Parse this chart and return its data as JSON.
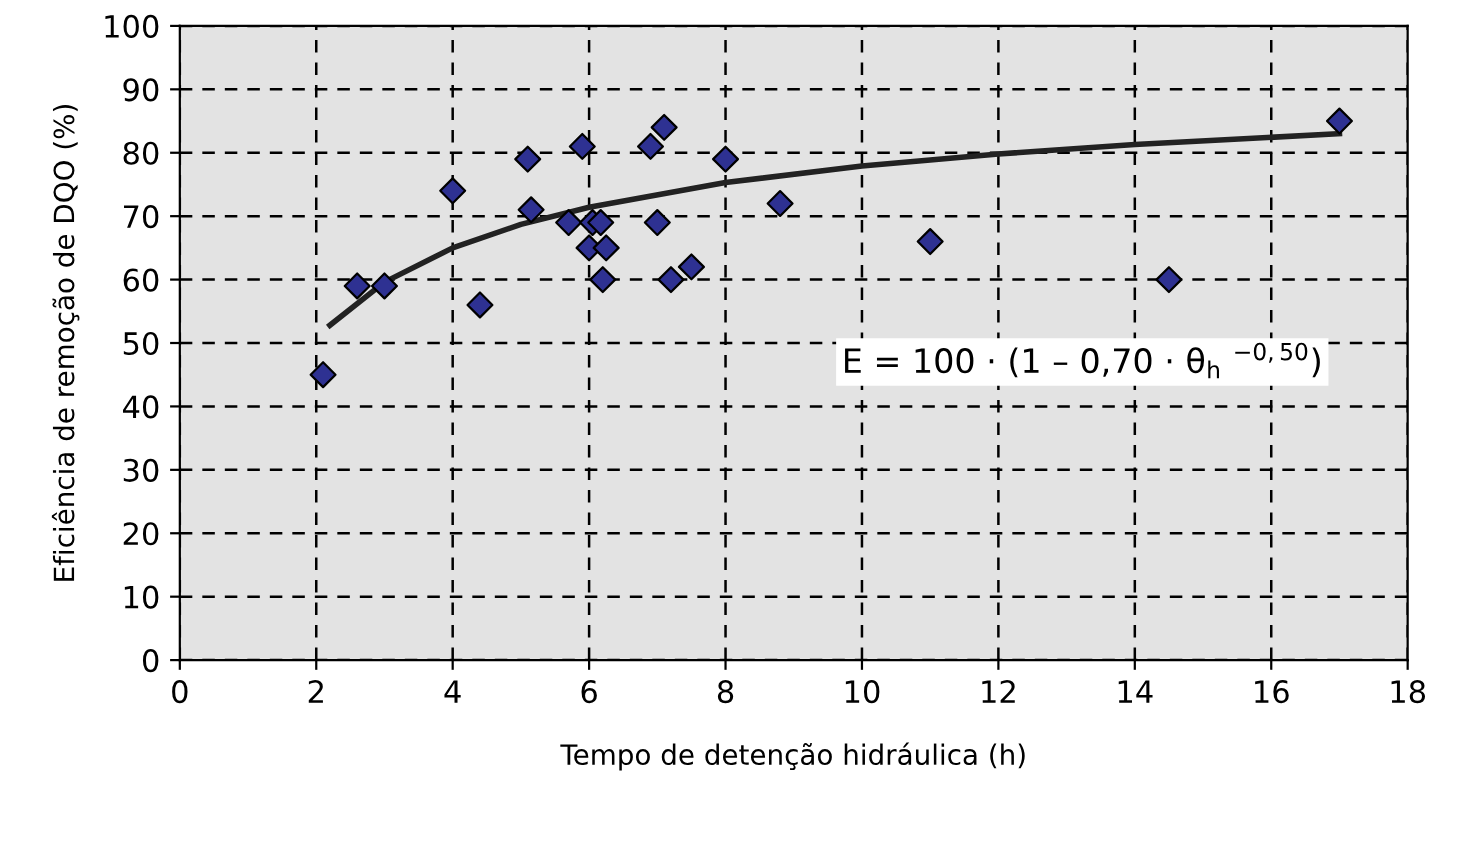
{
  "chart_data": {
    "type": "scatter",
    "xlabel": "Tempo de detenção hidráulica (h)",
    "ylabel": "Eficiência de remoção de DQO (%)",
    "xlim": [
      0,
      18
    ],
    "ylim": [
      0,
      100
    ],
    "xticks": [
      0,
      2,
      4,
      6,
      8,
      10,
      12,
      14,
      16,
      18
    ],
    "yticks": [
      0,
      10,
      20,
      30,
      40,
      50,
      60,
      70,
      80,
      90,
      100
    ],
    "grid": true,
    "legend": false,
    "annotations": [
      "E = 100 · (1 – 0,70 · θ$_{h}$ $^{−0,50}$)"
    ],
    "series": [
      {
        "marker": "diamond",
        "color": "#2e3192",
        "x": [
          2.1,
          2.6,
          3.0,
          4.0,
          4.4,
          5.1,
          5.15,
          5.7,
          5.9,
          6.0,
          6.05,
          6.17,
          6.2,
          6.25,
          6.9,
          7.0,
          7.1,
          7.2,
          7.5,
          8.0,
          8.8,
          11.0,
          14.5,
          17.0
        ],
        "values": [
          45,
          59,
          59,
          74,
          56,
          79,
          71,
          69,
          81,
          65,
          69,
          69,
          60,
          65,
          81,
          69,
          84,
          60,
          62,
          79,
          72,
          66,
          60,
          85
        ]
      },
      {
        "type": "line",
        "marker": "none",
        "color": "#222222",
        "x": [
          2.2,
          3,
          4,
          5,
          6,
          8,
          10,
          12,
          14,
          17
        ],
        "values": [
          52.8,
          59.6,
          65,
          68.7,
          71.4,
          75.3,
          77.9,
          79.8,
          81.3,
          83
        ]
      }
    ]
  }
}
